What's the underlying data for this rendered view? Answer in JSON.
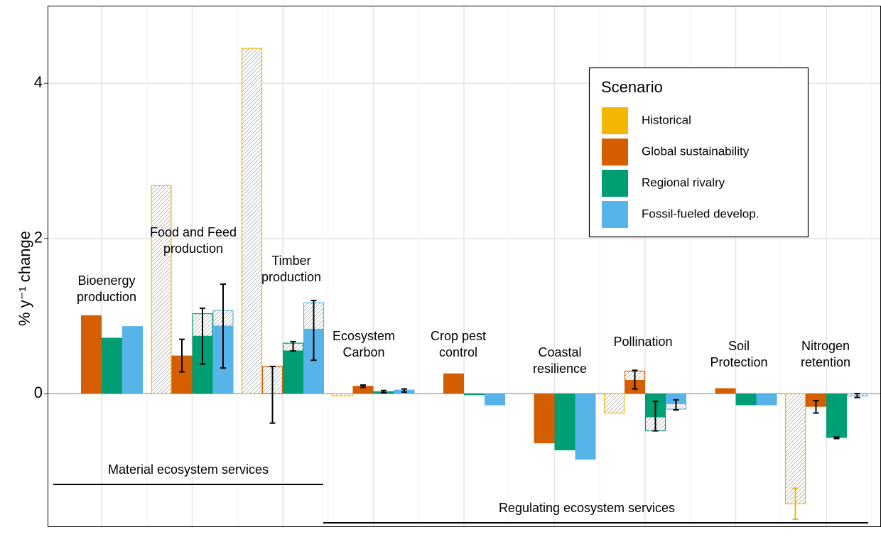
{
  "chart_data": {
    "type": "bar",
    "ylabel": "% y⁻¹ change",
    "categories": [
      "Bioenergy\nproduction",
      "Food and Feed\nproduction",
      "Timber\nproduction",
      "Ecosystem\nCarbon",
      "Crop pest\ncontrol",
      "Coastal\nresilience",
      "Pollination",
      "Soil\nProtection",
      "Nitrogen\nretention"
    ],
    "ylim": [
      -1.72,
      5.0
    ],
    "yticks": [
      0,
      2,
      4
    ],
    "grid": true,
    "legend": {
      "title": "Scenario",
      "position": "upper right"
    },
    "annotations": [
      "Material ecosystem services",
      "Regulating ecosystem services"
    ],
    "series": [
      {
        "name": "Historical",
        "color": "#f2b705",
        "values": [
          null,
          null,
          null,
          null,
          null,
          null,
          null,
          null,
          null
        ],
        "hatched": [
          null,
          2.68,
          4.45,
          -0.03,
          null,
          null,
          -0.25,
          null,
          -1.42
        ],
        "error_low": [
          null,
          null,
          null,
          null,
          null,
          null,
          null,
          null,
          -1.62
        ],
        "error_high": [
          null,
          null,
          null,
          null,
          null,
          null,
          null,
          null,
          -1.22
        ]
      },
      {
        "name": "Global sustainability",
        "color": "#d55e00",
        "values": [
          1.01,
          0.49,
          null,
          0.1,
          0.26,
          -0.64,
          0.17,
          0.07,
          -0.17
        ],
        "hatched": [
          null,
          null,
          0.35,
          null,
          null,
          null,
          0.29,
          null,
          null
        ],
        "error_low": [
          null,
          0.28,
          -0.38,
          0.08,
          null,
          null,
          0.06,
          null,
          -0.25
        ],
        "error_high": [
          null,
          0.7,
          0.35,
          0.11,
          null,
          null,
          0.3,
          null,
          -0.09
        ]
      },
      {
        "name": "Regional rivalry",
        "color": "#009e73",
        "values": [
          0.72,
          0.74,
          0.55,
          0.03,
          -0.02,
          -0.73,
          -0.3,
          -0.15,
          -0.57
        ],
        "hatched": [
          null,
          1.03,
          0.65,
          null,
          null,
          null,
          -0.48,
          null,
          null
        ],
        "error_low": [
          null,
          0.38,
          0.55,
          0.01,
          null,
          null,
          -0.48,
          null,
          -0.58
        ],
        "error_high": [
          null,
          1.1,
          0.67,
          0.04,
          null,
          null,
          -0.1,
          null,
          -0.56
        ]
      },
      {
        "name": "Fossil-fueled develop.",
        "color": "#56b4e9",
        "values": [
          0.87,
          0.87,
          0.83,
          0.05,
          -0.15,
          -0.85,
          -0.13,
          -0.15,
          null
        ],
        "hatched": [
          null,
          1.07,
          1.17,
          null,
          null,
          null,
          -0.2,
          null,
          -0.03
        ],
        "error_low": [
          null,
          0.33,
          0.43,
          0.02,
          null,
          null,
          -0.21,
          null,
          -0.05
        ],
        "error_high": [
          null,
          1.41,
          1.2,
          0.06,
          null,
          null,
          -0.08,
          null,
          0.0
        ]
      }
    ]
  }
}
